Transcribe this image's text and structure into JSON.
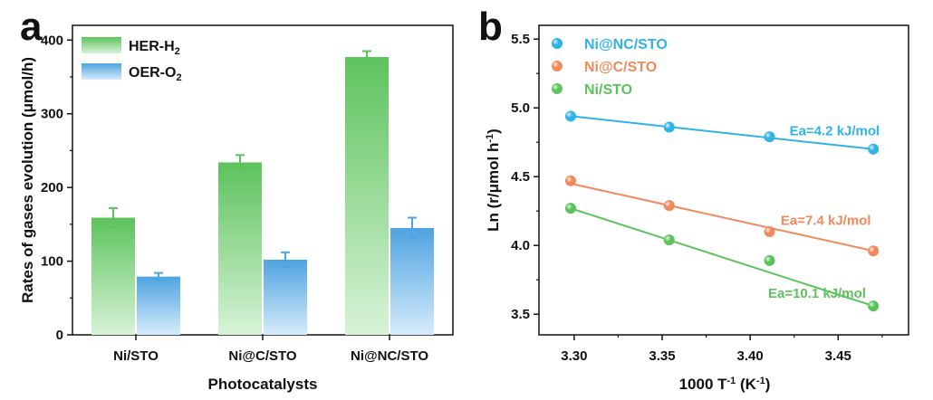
{
  "chart_data": [
    {
      "panel": "a",
      "type": "bar",
      "title": "",
      "xlabel": "Photocatalysts",
      "ylabel": "Rates of gases evolution (μmol/h)",
      "ylim": [
        0,
        420
      ],
      "yticks": [
        "0",
        "100",
        "200",
        "300",
        "400"
      ],
      "categories": [
        "Ni/STO",
        "Ni@C/STO",
        "Ni@NC/STO"
      ],
      "series": [
        {
          "name": "HER-H",
          "sub": "2",
          "color": "#5cc35c",
          "values": [
            159,
            234,
            377
          ],
          "errors": [
            13,
            10,
            8
          ]
        },
        {
          "name": "OER-O",
          "sub": "2",
          "color": "#4ea3e0",
          "values": [
            79,
            102,
            145
          ],
          "errors": [
            5,
            10,
            14
          ]
        }
      ],
      "legend": "top-left"
    },
    {
      "panel": "b",
      "type": "scatter",
      "title": "",
      "xlabel_main": "1000 T",
      "xlabel_sup": "-1",
      "xlabel_unit_open": " (K",
      "xlabel_unit_sup": "-1",
      "xlabel_unit_close": ")",
      "ylabel_main": "Ln (r/μmol h",
      "ylabel_sup": "-1",
      "ylabel_close": ")",
      "xlim": [
        3.28,
        3.49
      ],
      "ylim": [
        3.35,
        5.6
      ],
      "xticks": [
        "3.30",
        "3.35",
        "3.40",
        "3.45"
      ],
      "yticks": [
        "3.5",
        "4.0",
        "4.5",
        "5.0",
        "5.5"
      ],
      "series": [
        {
          "name": "Ni@NC/STO",
          "color": "#2fb3e6",
          "x": [
            3.298,
            3.354,
            3.411,
            3.47
          ],
          "y": [
            4.94,
            4.86,
            4.79,
            4.7
          ],
          "fit": [
            4.94,
            4.7
          ],
          "annotation": "Ea=4.2 kJ/mol"
        },
        {
          "name": "Ni@C/STO",
          "color": "#f08a5d",
          "x": [
            3.298,
            3.354,
            3.411,
            3.47
          ],
          "y": [
            4.47,
            4.29,
            4.1,
            3.96
          ],
          "fit": [
            4.45,
            3.96
          ],
          "annotation": "Ea=7.4 kJ/mol"
        },
        {
          "name": "Ni/STO",
          "color": "#5cc35c",
          "x": [
            3.298,
            3.354,
            3.411,
            3.47
          ],
          "y": [
            4.27,
            4.04,
            3.89,
            3.56
          ],
          "fit": [
            4.27,
            3.56
          ],
          "annotation": "Ea=10.1 kJ/mol"
        }
      ],
      "legend": "top-left"
    }
  ]
}
